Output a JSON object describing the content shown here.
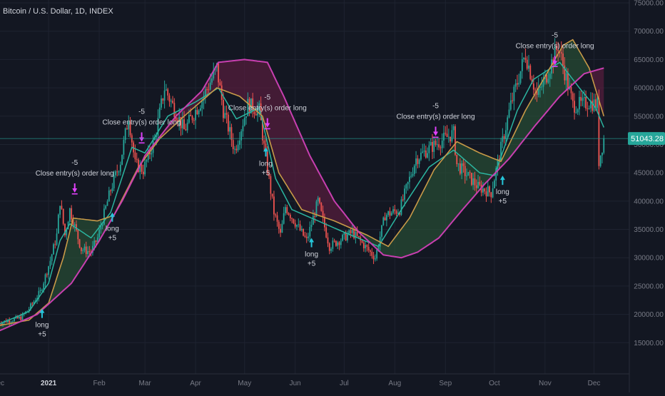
{
  "header": {
    "symbol_title": "Bitcoin / U.S. Dollar, 1D, INDEX"
  },
  "colors": {
    "background": "#131722",
    "grid": "#1e2330",
    "candle_up": "#26a69a",
    "candle_down": "#ef5350",
    "fast_ma": "#2bb5a0",
    "mid_ma": "#c89a48",
    "slow_ma": "#c83fb0",
    "fill_bull": "#2e5c3a",
    "fill_bear": "#6b1f45",
    "signal_long": "#26c6da",
    "signal_close": "#e040fb",
    "price_tag": "#26a69a",
    "axis_text": "#787b86"
  },
  "chart_data": {
    "type": "line",
    "title": "Bitcoin / U.S. Dollar, 1D, INDEX",
    "y_axis_side": "right",
    "ylim": [
      10000,
      75000
    ],
    "y_ticks": [
      "15000.00",
      "20000.00",
      "25000.00",
      "30000.00",
      "35000.00",
      "40000.00",
      "45000.00",
      "50000.00",
      "55000.00",
      "60000.00",
      "65000.00",
      "70000.00",
      "75000.00"
    ],
    "x_ticks": [
      "Dec",
      "2021",
      "Feb",
      "Mar",
      "Apr",
      "May",
      "Jun",
      "Jul",
      "Aug",
      "Sep",
      "Oct",
      "Nov",
      "Dec"
    ],
    "last_price_label": "51043.28",
    "last_price": 51043.28,
    "price_path": [
      [
        "2020-12-01",
        18500
      ],
      [
        "2020-12-15",
        19400
      ],
      [
        "2020-12-20",
        21000
      ],
      [
        "2020-12-27",
        24000
      ],
      [
        "2021-01-02",
        29500
      ],
      [
        "2021-01-06",
        34000
      ],
      [
        "2021-01-08",
        40000
      ],
      [
        "2021-01-11",
        34000
      ],
      [
        "2021-01-14",
        38500
      ],
      [
        "2021-01-21",
        31500
      ],
      [
        "2021-01-27",
        31000
      ],
      [
        "2021-01-31",
        33500
      ],
      [
        "2021-02-08",
        42000
      ],
      [
        "2021-02-14",
        47000
      ],
      [
        "2021-02-19",
        55000
      ],
      [
        "2021-02-23",
        46500
      ],
      [
        "2021-02-28",
        45500
      ],
      [
        "2021-03-07",
        51000
      ],
      [
        "2021-03-13",
        60000
      ],
      [
        "2021-03-25",
        52500
      ],
      [
        "2021-04-05",
        58000
      ],
      [
        "2021-04-14",
        63500
      ],
      [
        "2021-04-18",
        56000
      ],
      [
        "2021-04-25",
        49000
      ],
      [
        "2021-05-03",
        57000
      ],
      [
        "2021-05-10",
        56000
      ],
      [
        "2021-05-13",
        49500
      ],
      [
        "2021-05-19",
        38000
      ],
      [
        "2021-05-23",
        34000
      ],
      [
        "2021-05-26",
        39000
      ],
      [
        "2021-06-08",
        33000
      ],
      [
        "2021-06-15",
        40000
      ],
      [
        "2021-06-22",
        32000
      ],
      [
        "2021-07-06",
        34500
      ],
      [
        "2021-07-20",
        30000
      ],
      [
        "2021-07-26",
        37500
      ],
      [
        "2021-08-04",
        38500
      ],
      [
        "2021-08-14",
        47500
      ],
      [
        "2021-08-23",
        49500
      ],
      [
        "2021-09-06",
        52000
      ],
      [
        "2021-09-08",
        46500
      ],
      [
        "2021-09-21",
        42500
      ],
      [
        "2021-09-29",
        41500
      ],
      [
        "2021-10-04",
        48000
      ],
      [
        "2021-10-11",
        57000
      ],
      [
        "2021-10-20",
        66000
      ],
      [
        "2021-10-27",
        58500
      ],
      [
        "2021-11-01",
        61500
      ],
      [
        "2021-11-09",
        67500
      ],
      [
        "2021-11-18",
        57000
      ],
      [
        "2021-11-24",
        57000
      ],
      [
        "2021-11-28",
        57500
      ],
      [
        "2021-12-03",
        57000
      ],
      [
        "2021-12-04",
        47000
      ],
      [
        "2021-12-07",
        51043
      ]
    ],
    "series": [
      {
        "color": "#2bb5a0",
        "points": [
          [
            "2020-12-01",
            18200
          ],
          [
            "2020-12-20",
            20500
          ],
          [
            "2021-01-01",
            25500
          ],
          [
            "2021-01-08",
            33000
          ],
          [
            "2021-01-14",
            36000
          ],
          [
            "2021-01-27",
            33500
          ],
          [
            "2021-02-08",
            38000
          ],
          [
            "2021-02-21",
            49500
          ],
          [
            "2021-03-01",
            48500
          ],
          [
            "2021-03-15",
            55000
          ],
          [
            "2021-04-01",
            57500
          ],
          [
            "2021-04-15",
            60000
          ],
          [
            "2021-04-26",
            54500
          ],
          [
            "2021-05-10",
            56500
          ],
          [
            "2021-05-20",
            44000
          ],
          [
            "2021-05-30",
            38500
          ],
          [
            "2021-06-15",
            36500
          ],
          [
            "2021-07-01",
            34500
          ],
          [
            "2021-07-22",
            32000
          ],
          [
            "2021-08-05",
            38500
          ],
          [
            "2021-08-22",
            46000
          ],
          [
            "2021-09-06",
            49000
          ],
          [
            "2021-09-22",
            45000
          ],
          [
            "2021-10-01",
            44500
          ],
          [
            "2021-10-15",
            56000
          ],
          [
            "2021-10-25",
            61500
          ],
          [
            "2021-11-10",
            64500
          ],
          [
            "2021-11-22",
            60000
          ],
          [
            "2021-12-02",
            56500
          ],
          [
            "2021-12-07",
            53000
          ]
        ]
      },
      {
        "color": "#c89a48",
        "points": [
          [
            "2020-12-01",
            18000
          ],
          [
            "2020-12-20",
            19000
          ],
          [
            "2021-01-01",
            22000
          ],
          [
            "2021-01-10",
            30000
          ],
          [
            "2021-01-16",
            37000
          ],
          [
            "2021-01-31",
            36500
          ],
          [
            "2021-02-10",
            37500
          ],
          [
            "2021-02-25",
            46000
          ],
          [
            "2021-03-10",
            51000
          ],
          [
            "2021-03-25",
            55000
          ],
          [
            "2021-04-14",
            60000
          ],
          [
            "2021-04-28",
            58500
          ],
          [
            "2021-05-12",
            55000
          ],
          [
            "2021-05-22",
            45000
          ],
          [
            "2021-06-05",
            38500
          ],
          [
            "2021-06-25",
            36500
          ],
          [
            "2021-07-15",
            34000
          ],
          [
            "2021-07-28",
            32000
          ],
          [
            "2021-08-10",
            37000
          ],
          [
            "2021-08-25",
            45500
          ],
          [
            "2021-09-08",
            50500
          ],
          [
            "2021-09-22",
            48500
          ],
          [
            "2021-10-05",
            47000
          ],
          [
            "2021-10-20",
            56000
          ],
          [
            "2021-11-01",
            62000
          ],
          [
            "2021-11-12",
            67500
          ],
          [
            "2021-11-18",
            68500
          ],
          [
            "2021-11-28",
            63500
          ],
          [
            "2021-12-07",
            55000
          ]
        ]
      },
      {
        "color": "#c83fb0",
        "points": [
          [
            "2020-12-01",
            17000
          ],
          [
            "2020-12-25",
            20000
          ],
          [
            "2021-01-15",
            25500
          ],
          [
            "2021-02-01",
            33000
          ],
          [
            "2021-02-15",
            40000
          ],
          [
            "2021-03-01",
            48000
          ],
          [
            "2021-03-20",
            55000
          ],
          [
            "2021-04-05",
            59500
          ],
          [
            "2021-04-15",
            64500
          ],
          [
            "2021-05-01",
            65000
          ],
          [
            "2021-05-15",
            64500
          ],
          [
            "2021-05-25",
            58500
          ],
          [
            "2021-06-10",
            48000
          ],
          [
            "2021-06-25",
            40000
          ],
          [
            "2021-07-10",
            34500
          ],
          [
            "2021-07-25",
            30500
          ],
          [
            "2021-08-05",
            30000
          ],
          [
            "2021-08-15",
            31000
          ],
          [
            "2021-08-28",
            33500
          ],
          [
            "2021-09-10",
            38000
          ],
          [
            "2021-09-25",
            43000
          ],
          [
            "2021-10-10",
            47500
          ],
          [
            "2021-10-25",
            53000
          ],
          [
            "2021-11-10",
            58500
          ],
          [
            "2021-11-25",
            62500
          ],
          [
            "2021-12-07",
            63500
          ]
        ]
      }
    ],
    "signals": [
      {
        "kind": "long",
        "date": "2020-12-28",
        "price": 21000,
        "label": "long",
        "qty": "+5"
      },
      {
        "kind": "close",
        "date": "2021-01-17",
        "price": 41500,
        "label": "Close entry(s) order long",
        "qty": "-5"
      },
      {
        "kind": "long",
        "date": "2021-02-09",
        "price": 38000,
        "label": "long",
        "qty": "+5"
      },
      {
        "kind": "close",
        "date": "2021-02-27",
        "price": 50500,
        "label": "Close entry(s) order long",
        "qty": "-5"
      },
      {
        "kind": "long",
        "date": "2021-05-14",
        "price": 49500,
        "label": "long",
        "qty": "+5"
      },
      {
        "kind": "close",
        "date": "2021-05-15",
        "price": 53000,
        "label": "Close entry(s) order long",
        "qty": "-5"
      },
      {
        "kind": "long",
        "date": "2021-06-11",
        "price": 33500,
        "label": "long",
        "qty": "+5"
      },
      {
        "kind": "close",
        "date": "2021-08-26",
        "price": 51500,
        "label": "Close entry(s) order long",
        "qty": "-5"
      },
      {
        "kind": "long",
        "date": "2021-10-06",
        "price": 44500,
        "label": "long",
        "qty": "+5"
      },
      {
        "kind": "close",
        "date": "2021-11-07",
        "price": 64000,
        "label": "Close entry(s) order long",
        "qty": "-5"
      }
    ]
  }
}
